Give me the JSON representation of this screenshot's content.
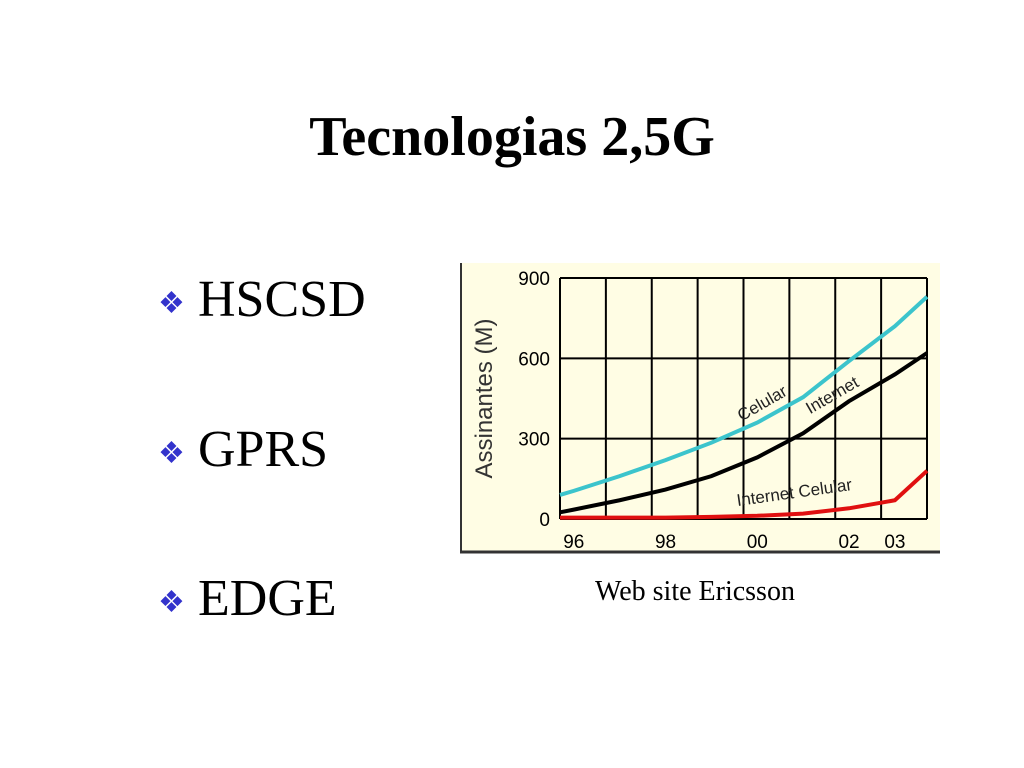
{
  "title": "Tecnologias 2,5G",
  "bullets": [
    "HSCSD",
    "GPRS",
    "EDGE"
  ],
  "caption": "Web site Ericsson",
  "chart_data": {
    "type": "line",
    "y_label": "Assinantes (M)",
    "x": [
      1995.7,
      1996,
      1997,
      1998,
      1999,
      2000,
      2001,
      2002,
      2003,
      2003.7
    ],
    "series": [
      {
        "name": "Celular",
        "color": "#3cc4cc",
        "values": [
          90,
          105,
          160,
          220,
          285,
          360,
          455,
          590,
          720,
          830
        ]
      },
      {
        "name": "Internet",
        "color": "#000000",
        "values": [
          25,
          35,
          70,
          110,
          160,
          230,
          320,
          440,
          540,
          620
        ]
      },
      {
        "name": "Internet Celular",
        "color": "#e01010",
        "values": [
          5,
          5,
          5,
          5,
          8,
          12,
          20,
          40,
          70,
          180
        ]
      }
    ],
    "xlim": [
      1995.7,
      2003.7
    ],
    "xticks": [
      {
        "value": 1996,
        "label": "96"
      },
      {
        "value": 1998,
        "label": "98"
      },
      {
        "value": 2000,
        "label": "00"
      },
      {
        "value": 2002,
        "label": "02"
      },
      {
        "value": 2003,
        "label": "03"
      }
    ],
    "ylim": [
      0,
      900
    ],
    "yticks": [
      0,
      300,
      600,
      900
    ],
    "grid": true
  }
}
